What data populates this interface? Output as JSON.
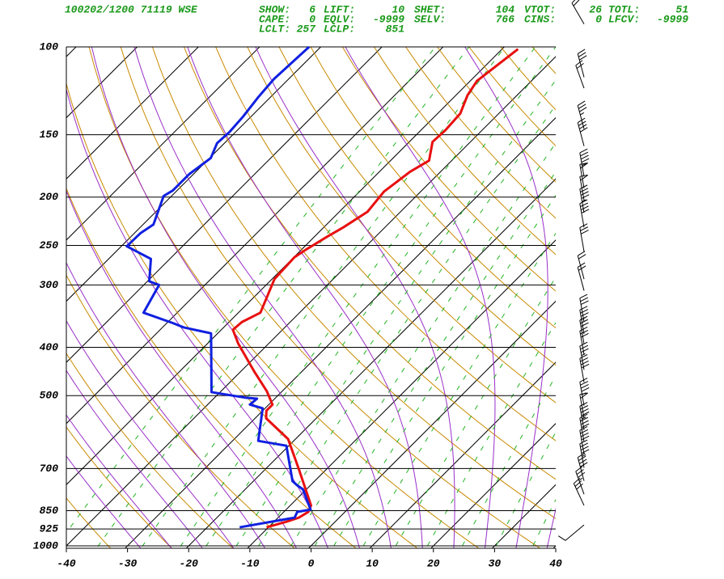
{
  "chart_data": {
    "type": "skewt",
    "header": {
      "station": "100202/1200 71119  WSE",
      "indices": [
        {
          "name": "SHOW:",
          "value": 6
        },
        {
          "name": "LIFT:",
          "value": 10
        },
        {
          "name": "SHET:",
          "value": 104
        },
        {
          "name": "VTOT:",
          "value": 26
        },
        {
          "name": "TOTL:",
          "value": 51
        },
        {
          "name": "CAPE:",
          "value": 0
        },
        {
          "name": "EQLV:",
          "value": -9999
        },
        {
          "name": "SELV:",
          "value": 766
        },
        {
          "name": "CINS:",
          "value": 0
        },
        {
          "name": "LFCV:",
          "value": -9999
        },
        {
          "name": "LCLT:",
          "value": 257
        },
        {
          "name": "LCLP:",
          "value": 851
        }
      ]
    },
    "ylim": [
      100,
      1000
    ],
    "log_y": true,
    "yticks": [
      100,
      150,
      200,
      250,
      300,
      400,
      500,
      700,
      850,
      925,
      1000
    ],
    "xlim": [
      -40,
      40
    ],
    "xticks": [
      -40,
      -30,
      -20,
      -10,
      0,
      10,
      20,
      30,
      40
    ],
    "series": [
      {
        "color": "#e81010",
        "pressure": [
          101,
          117,
          125,
          136,
          147,
          155,
          169,
          178,
          195,
          214,
          230,
          240,
          254,
          264,
          292,
          341,
          356,
          369,
          393,
          448,
          490,
          521,
          536,
          555,
          611,
          701,
          830,
          855,
          878,
          894,
          918
        ],
        "values": [
          -47.4,
          -48.9,
          -48.1,
          -46.3,
          -46.0,
          -46.2,
          -43.7,
          -45.0,
          -46.0,
          -45.4,
          -46.8,
          -47.9,
          -49.2,
          -49.9,
          -49.6,
          -46.4,
          -47.9,
          -48.1,
          -45.0,
          -37.7,
          -32.5,
          -29.4,
          -29.4,
          -28.2,
          -21.2,
          -14.6,
          -6.6,
          -6.0,
          -6.6,
          -7.9,
          -10.3
        ]
      },
      {
        "color": "#1020e0",
        "pressure": [
          100,
          116,
          126,
          138,
          148,
          156,
          167,
          180,
          194,
          199,
          227,
          236,
          251,
          266,
          295,
          300,
          341,
          358,
          365,
          375,
          401,
          492,
          505,
          507,
          521,
          530,
          616,
          630,
          742,
          756,
          770,
          846,
          855,
          878,
          918
        ],
        "values": [
          -81.9,
          -82.4,
          -82.0,
          -81.3,
          -81.0,
          -81.2,
          -79.8,
          -80.7,
          -80.7,
          -81.3,
          -78.3,
          -79.0,
          -79.1,
          -73.1,
          -69.7,
          -67.5,
          -65.5,
          -58.9,
          -56.5,
          -51.1,
          -48.7,
          -41.4,
          -34.8,
          -32.9,
          -33.1,
          -30.4,
          -25.8,
          -20.4,
          -13.6,
          -12.2,
          -10.6,
          -6.0,
          -7.8,
          -7.3,
          -14.7
        ]
      }
    ],
    "winds": {
      "pressure": [
        90,
        115,
        121,
        146,
        158,
        182,
        192,
        203,
        215,
        230,
        257,
        292,
        308,
        356,
        376,
        394,
        414,
        444,
        470,
        524,
        555,
        586,
        619,
        655,
        697,
        741,
        788,
        830,
        908
      ],
      "direction": [
        330,
        345,
        340,
        345,
        345,
        350,
        350,
        350,
        350,
        350,
        350,
        345,
        345,
        350,
        350,
        350,
        350,
        350,
        350,
        350,
        350,
        350,
        350,
        350,
        350,
        345,
        340,
        335,
        230
      ],
      "speed": [
        20,
        30,
        20,
        35,
        40,
        45,
        50,
        50,
        45,
        40,
        30,
        20,
        20,
        30,
        35,
        30,
        30,
        35,
        40,
        45,
        50,
        45,
        40,
        40,
        45,
        40,
        35,
        30,
        10
      ]
    }
  }
}
